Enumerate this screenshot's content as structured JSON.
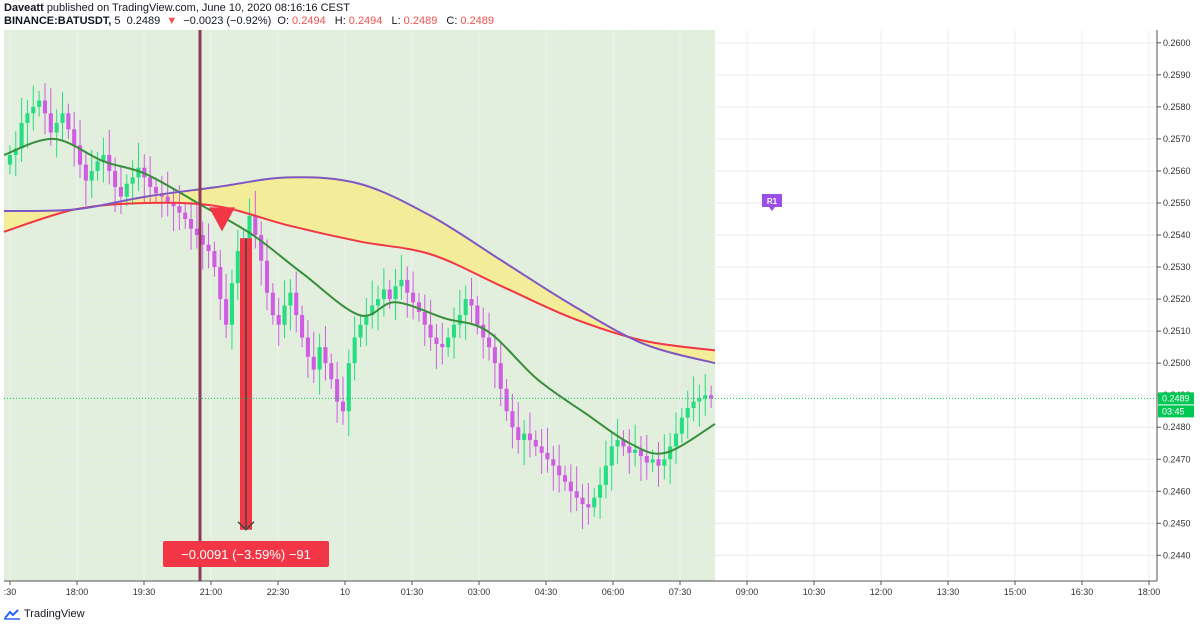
{
  "header": {
    "author": "Daveatt",
    "published_text": "published on TradingView.com, June 10, 2020 08:16:16 CEST",
    "symbol": "BINANCE:BATUSDT,",
    "interval": "5",
    "last": "0.2489",
    "change": "−0.0023 (−0.92%)",
    "o_label": "O:",
    "o": "0.2494",
    "h_label": "H:",
    "h": "0.2494",
    "l_label": "L:",
    "l": "0.2489",
    "c_label": "C:",
    "c": "0.2489"
  },
  "footer": {
    "brand": "TradingView"
  },
  "colors": {
    "up": "#26de81",
    "down": "#d05ce3",
    "ema_fast": "#388e3c",
    "ema_red": "#f23645",
    "ema_purple": "#7e57c2",
    "cloud": "#f7ec8a",
    "session_bg": "#e1efdc",
    "measure": "#f23645",
    "marker_line": "#8e3a59",
    "last_price": "#00c853",
    "r1": "#9c4fe6"
  },
  "chart_data": {
    "type": "candlestick",
    "y_axis": {
      "ylim": [
        0.2432,
        0.2604
      ],
      "ticks": [
        "0.2600",
        "0.2590",
        "0.2580",
        "0.2570",
        "0.2560",
        "0.2550",
        "0.2540",
        "0.2530",
        "0.2520",
        "0.2510",
        "0.2500",
        "0.2490",
        "0.2480",
        "0.2470",
        "0.2460",
        "0.2450",
        "0.2440"
      ],
      "side": "right"
    },
    "x_axis": {
      "ticks": [
        ":30",
        "18:00",
        "19:30",
        "21:00",
        "22:30",
        "10",
        "01:30",
        "03:00",
        "04:30",
        "06:00",
        "07:30",
        "09:00",
        "10:30",
        "12:00",
        "13:30",
        "15:00",
        "16:30",
        "18:00"
      ]
    },
    "last_price": {
      "value": "0.2489",
      "countdown": "03:45"
    },
    "measure_label": "−0.0091 (−3.59%) −91",
    "measure_from": 0.2539,
    "measure_to": 0.2448,
    "signal": {
      "type": "sell",
      "price": 0.2548
    },
    "marker": "R1",
    "marker_price": 0.255,
    "series_close": [
      0.2565,
      0.2567,
      0.2575,
      0.2578,
      0.258,
      0.2582,
      0.2578,
      0.2572,
      0.2575,
      0.2578,
      0.2573,
      0.2568,
      0.2562,
      0.2557,
      0.256,
      0.2563,
      0.2565,
      0.256,
      0.2555,
      0.2552,
      0.2556,
      0.2558,
      0.2561,
      0.2558,
      0.2555,
      0.2553,
      0.2552,
      0.255,
      0.2549,
      0.2547,
      0.2545,
      0.2542,
      0.254,
      0.2537,
      0.2535,
      0.253,
      0.252,
      0.2512,
      0.2525,
      0.2535,
      0.2539,
      0.2546,
      0.254,
      0.2532,
      0.2522,
      0.2515,
      0.2512,
      0.2518,
      0.2522,
      0.2515,
      0.2508,
      0.2502,
      0.2498,
      0.2505,
      0.25,
      0.2495,
      0.2488,
      0.2485,
      0.25,
      0.2508,
      0.2512,
      0.2515,
      0.2518,
      0.252,
      0.2523,
      0.252,
      0.2524,
      0.2526,
      0.2522,
      0.2519,
      0.2516,
      0.2512,
      0.2508,
      0.2506,
      0.2505,
      0.2508,
      0.2512,
      0.2515,
      0.252,
      0.2518,
      0.2512,
      0.2508,
      0.2505,
      0.25,
      0.2492,
      0.2485,
      0.248,
      0.2476,
      0.2478,
      0.2476,
      0.2474,
      0.2472,
      0.247,
      0.2468,
      0.2465,
      0.2463,
      0.246,
      0.2458,
      0.2456,
      0.2455,
      0.2458,
      0.2462,
      0.2468,
      0.2474,
      0.2476,
      0.2474,
      0.2472,
      0.2473,
      0.2471,
      0.2469,
      0.247,
      0.2468,
      0.247,
      0.2474,
      0.2478,
      0.2483,
      0.2486,
      0.2488,
      0.2489,
      0.249,
      0.2489
    ],
    "ema_purple": [
      [
        0,
        0.25475
      ],
      [
        0.1,
        0.2548
      ],
      [
        0.2,
        0.2552
      ],
      [
        0.3,
        0.2555
      ],
      [
        0.4,
        0.2558
      ],
      [
        0.5,
        0.2556
      ],
      [
        0.6,
        0.2546
      ],
      [
        0.7,
        0.2532
      ],
      [
        0.8,
        0.2518
      ],
      [
        0.9,
        0.2506
      ],
      [
        1.0,
        0.25
      ]
    ],
    "ema_red": [
      [
        0,
        0.2541
      ],
      [
        0.1,
        0.2548
      ],
      [
        0.2,
        0.255
      ],
      [
        0.3,
        0.2549
      ],
      [
        0.4,
        0.2543
      ],
      [
        0.5,
        0.2538
      ],
      [
        0.6,
        0.2534
      ],
      [
        0.7,
        0.2524
      ],
      [
        0.8,
        0.2514
      ],
      [
        0.9,
        0.2507
      ],
      [
        1.0,
        0.2504
      ]
    ],
    "ema_green": [
      [
        0,
        0.2565
      ],
      [
        0.07,
        0.257
      ],
      [
        0.14,
        0.2563
      ],
      [
        0.2,
        0.2559
      ],
      [
        0.28,
        0.2549
      ],
      [
        0.35,
        0.254
      ],
      [
        0.42,
        0.2528
      ],
      [
        0.5,
        0.2515
      ],
      [
        0.55,
        0.2519
      ],
      [
        0.62,
        0.2514
      ],
      [
        0.68,
        0.251
      ],
      [
        0.75,
        0.2495
      ],
      [
        0.82,
        0.2484
      ],
      [
        0.88,
        0.2475
      ],
      [
        0.93,
        0.2472
      ],
      [
        1.0,
        0.2481
      ]
    ]
  }
}
